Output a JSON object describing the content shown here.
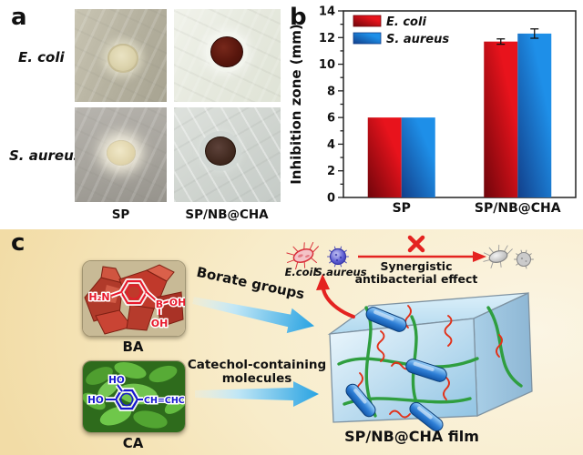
{
  "panel_a": {
    "letter": "a",
    "row_labels": {
      "ecoli": "E. coli",
      "saureus": "S. aureus"
    },
    "col_labels": {
      "sp": "SP",
      "spnbcha": "SP/NB@CHA"
    }
  },
  "panel_b": {
    "letter": "b"
  },
  "chart_data": {
    "type": "bar",
    "categories": [
      "SP",
      "SP/NB@CHA"
    ],
    "series": [
      {
        "name": "E. coli",
        "color": "#e8131c",
        "color_dark": "#6f050b",
        "values": [
          6,
          11.7
        ],
        "errors": [
          0,
          0.2
        ]
      },
      {
        "name": "S. aureus",
        "color": "#1e8fe8",
        "color_dark": "#123f8a",
        "values": [
          6,
          12.3
        ],
        "errors": [
          0,
          0.35
        ]
      }
    ],
    "title": "",
    "xlabel": "",
    "ylabel": "Inhibition zone (mm)",
    "ylim": [
      0,
      14
    ],
    "ytick_step": 2,
    "grid": false,
    "legend_position": "top-left"
  },
  "panel_c": {
    "letter": "c",
    "ba": {
      "label": "BA",
      "amine": "H₂N",
      "boron": "B",
      "oh_right": "OH",
      "oh_down": "OH"
    },
    "ca": {
      "label": "CA",
      "ho_top": "HO",
      "ho_left": "HO",
      "chain": "CH=CHCOOH"
    },
    "arrow_borate_label": "Borate groups",
    "arrow_catechol_line1": "Catechol-containing",
    "arrow_catechol_line2": "molecules",
    "ecoli_label": "E.coil",
    "saureus_label": "S.aureus",
    "effect_line1": "Synergistic",
    "effect_line2": "antibacterial effect",
    "film_label": "SP/NB@CHA film",
    "colors": {
      "red_accent": "#e42320",
      "blue_arrow": "#29a3e2",
      "film_green": "#2f9e3f"
    }
  }
}
